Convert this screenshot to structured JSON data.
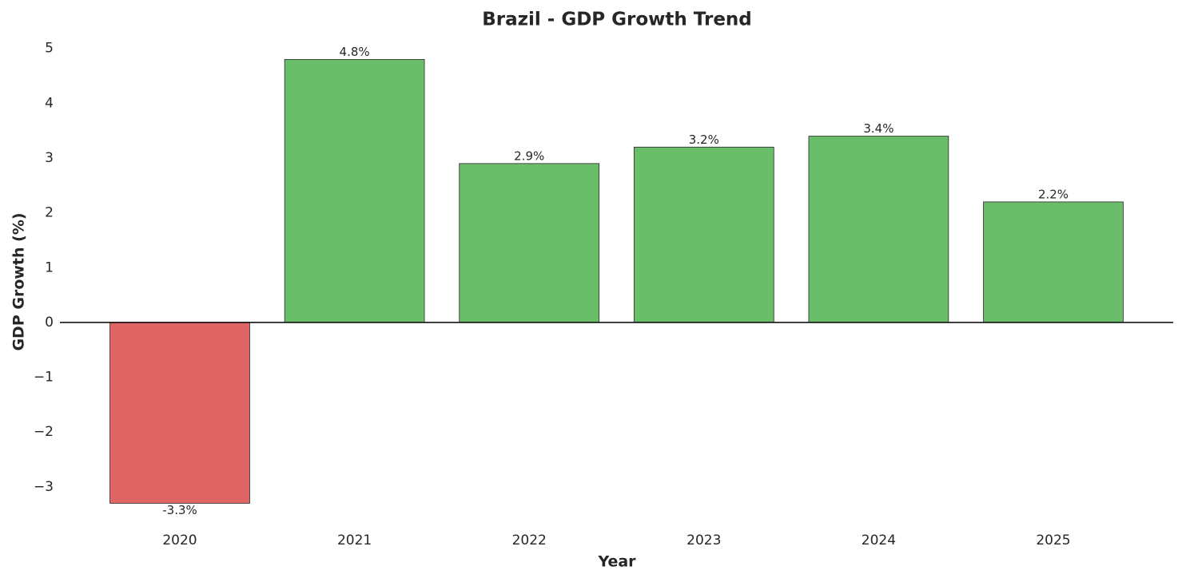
{
  "chart_data": {
    "type": "bar",
    "title": "Brazil - GDP Growth Trend",
    "x_label": "Year",
    "y_label": "GDP Growth (%)",
    "categories": [
      "2020",
      "2021",
      "2022",
      "2023",
      "2024",
      "2025"
    ],
    "values": [
      -3.3,
      4.8,
      2.9,
      3.2,
      3.4,
      2.2
    ],
    "value_labels": [
      "-3.3%",
      "4.8%",
      "2.9%",
      "3.2%",
      "3.4%",
      "2.2%"
    ],
    "colors": [
      "#e06666",
      "#6abe6a",
      "#6abe6a",
      "#6abe6a",
      "#6abe6a",
      "#6abe6a"
    ],
    "ylim": [
      -3.6,
      5.2
    ],
    "yticks": [
      {
        "value": -3,
        "label": "−3"
      },
      {
        "value": -2,
        "label": "−2"
      },
      {
        "value": -1,
        "label": "−1"
      },
      0,
      1,
      2,
      3,
      4,
      5
    ],
    "zero_line": true
  }
}
